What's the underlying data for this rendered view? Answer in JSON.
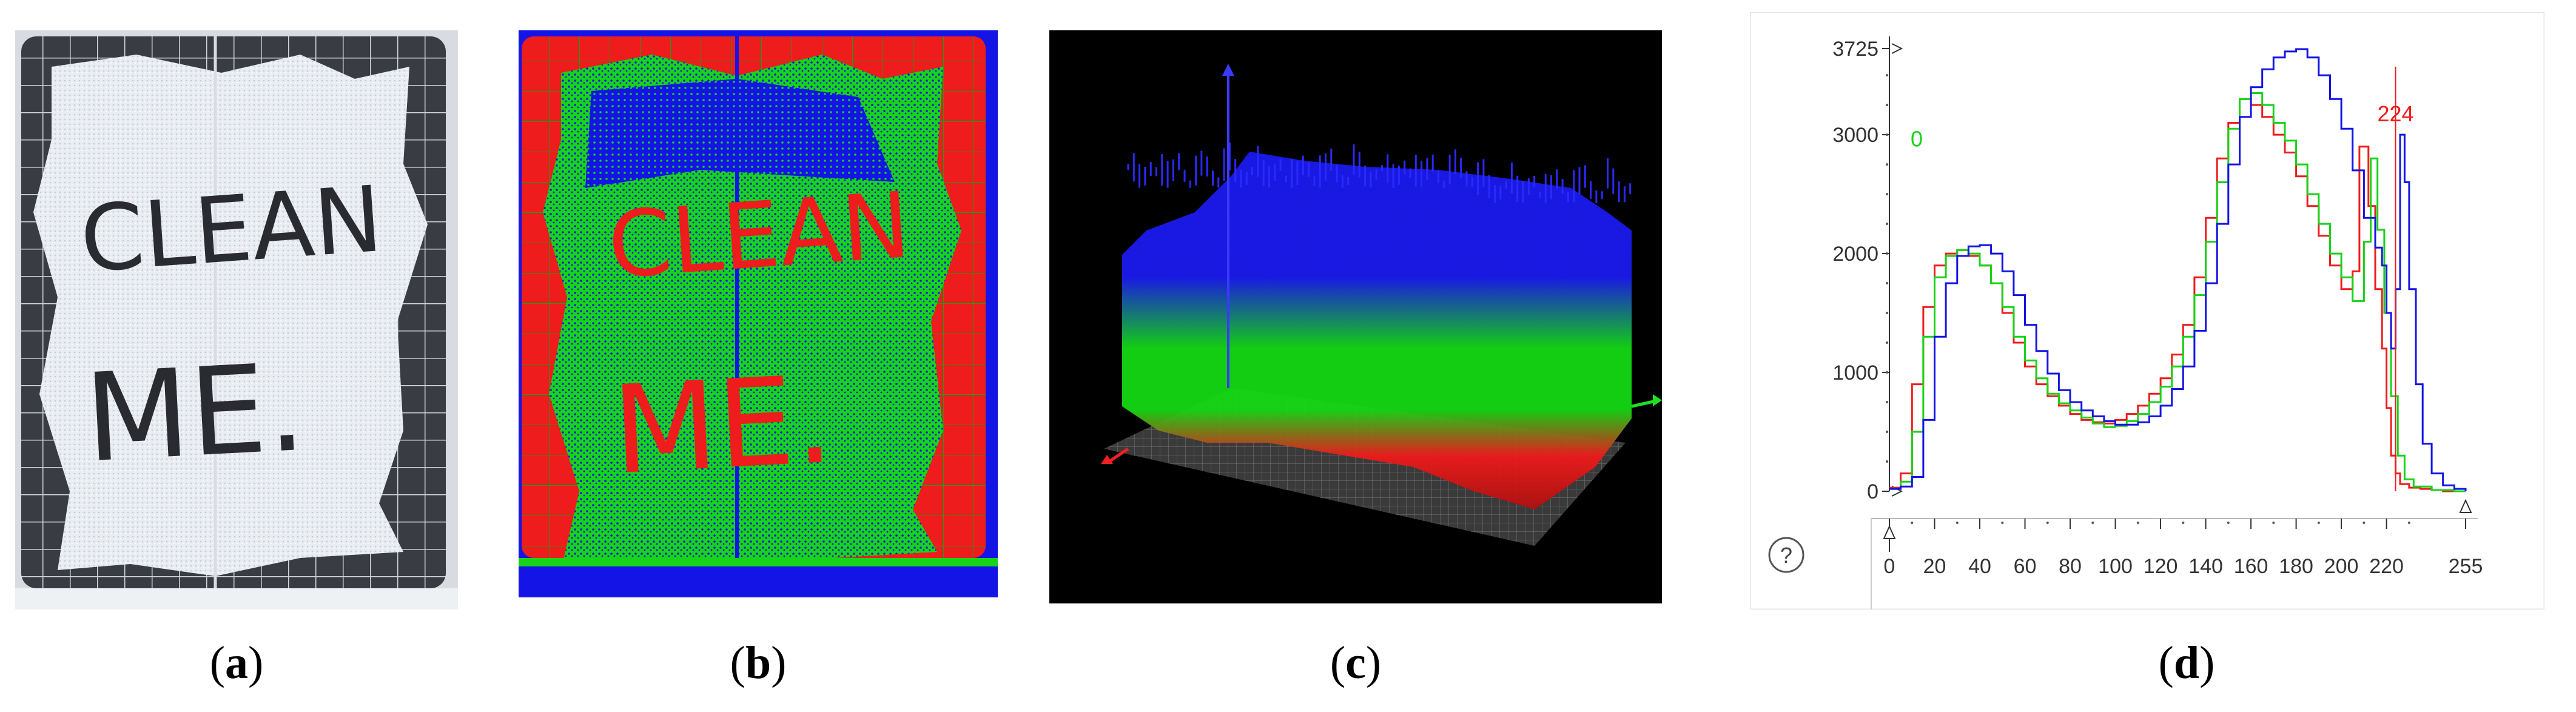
{
  "captions": [
    {
      "open": "(",
      "letter": "a",
      "close": ")"
    },
    {
      "open": "(",
      "letter": "b",
      "close": ")"
    },
    {
      "open": "(",
      "letter": "c",
      "close": ")"
    },
    {
      "open": "(",
      "letter": "d",
      "close": ")"
    }
  ],
  "panel_a": {
    "writing_line1": "CLEAN",
    "writing_line2": "ME."
  },
  "panel_b": {
    "writing_line1": "CLEAN",
    "writing_line2": "ME."
  },
  "colors": {
    "red": "#ee1c1c",
    "green": "#17d417",
    "blue": "#1414e6"
  },
  "chart_data": {
    "type": "line",
    "xlim": [
      0,
      255
    ],
    "ylim": [
      0,
      3725
    ],
    "x_ticks": [
      "0",
      "20",
      "40",
      "60",
      "80",
      "100",
      "120",
      "140",
      "160",
      "180",
      "200",
      "220",
      "255"
    ],
    "y_ticks": [
      "0",
      "1000",
      "2000",
      "3000",
      "3725"
    ],
    "help_icon_label": "?",
    "markers": [
      {
        "label": "224",
        "x": 224,
        "color": "#ee1c1c"
      },
      {
        "label": "0",
        "x": 0,
        "color": "#17d417"
      }
    ],
    "series": [
      {
        "color": "#ee1c1c",
        "x": [
          0,
          5,
          10,
          15,
          20,
          25,
          30,
          35,
          40,
          45,
          50,
          55,
          60,
          65,
          70,
          75,
          80,
          85,
          90,
          95,
          100,
          105,
          110,
          115,
          120,
          125,
          130,
          135,
          140,
          145,
          150,
          155,
          160,
          165,
          170,
          175,
          180,
          185,
          190,
          195,
          200,
          205,
          208,
          212,
          215,
          218,
          220,
          222,
          224,
          226,
          230,
          235,
          240,
          245,
          250,
          255
        ],
        "y": [
          30,
          150,
          900,
          1550,
          1900,
          2000,
          2030,
          1980,
          1900,
          1750,
          1500,
          1250,
          1050,
          900,
          800,
          720,
          650,
          600,
          580,
          570,
          600,
          650,
          720,
          820,
          950,
          1150,
          1400,
          1800,
          2300,
          2800,
          3100,
          3300,
          3250,
          3150,
          3000,
          2850,
          2650,
          2400,
          2150,
          1900,
          1700,
          1850,
          2900,
          2400,
          1700,
          1200,
          700,
          300,
          150,
          60,
          30,
          20,
          10,
          0,
          0,
          0
        ]
      },
      {
        "color": "#17d417",
        "x": [
          0,
          5,
          10,
          15,
          20,
          25,
          30,
          35,
          40,
          45,
          50,
          55,
          60,
          65,
          70,
          75,
          80,
          85,
          90,
          95,
          100,
          105,
          110,
          115,
          120,
          125,
          130,
          135,
          140,
          145,
          150,
          155,
          160,
          165,
          170,
          175,
          180,
          185,
          190,
          195,
          200,
          205,
          210,
          213,
          216,
          219,
          222,
          225,
          228,
          232,
          240,
          250,
          255
        ],
        "y": [
          20,
          80,
          500,
          1300,
          1800,
          1980,
          2030,
          2000,
          1900,
          1750,
          1550,
          1300,
          1100,
          950,
          820,
          740,
          680,
          620,
          570,
          540,
          550,
          590,
          650,
          750,
          880,
          1050,
          1300,
          1650,
          2100,
          2600,
          3050,
          3300,
          3350,
          3250,
          3100,
          2950,
          2750,
          2500,
          2250,
          2000,
          1800,
          1600,
          2100,
          2800,
          2200,
          1500,
          800,
          300,
          100,
          40,
          10,
          0,
          0
        ]
      },
      {
        "color": "#1414e6",
        "x": [
          0,
          5,
          10,
          15,
          20,
          25,
          30,
          35,
          40,
          45,
          50,
          55,
          60,
          65,
          70,
          75,
          80,
          85,
          90,
          95,
          100,
          105,
          110,
          115,
          120,
          125,
          130,
          135,
          140,
          145,
          150,
          155,
          160,
          165,
          170,
          175,
          180,
          185,
          190,
          195,
          200,
          205,
          210,
          215,
          218,
          220,
          222,
          224,
          226,
          228,
          230,
          233,
          236,
          240,
          245,
          250,
          255
        ],
        "y": [
          20,
          40,
          120,
          600,
          1300,
          1750,
          1980,
          2060,
          2070,
          2000,
          1850,
          1650,
          1400,
          1180,
          990,
          850,
          750,
          680,
          630,
          590,
          560,
          560,
          580,
          630,
          720,
          860,
          1050,
          1350,
          1750,
          2250,
          2750,
          3150,
          3400,
          3550,
          3650,
          3700,
          3720,
          3650,
          3500,
          3300,
          3050,
          2700,
          2300,
          2050,
          1900,
          1500,
          1200,
          1700,
          3000,
          2600,
          1700,
          900,
          400,
          150,
          50,
          20,
          0
        ]
      }
    ]
  }
}
